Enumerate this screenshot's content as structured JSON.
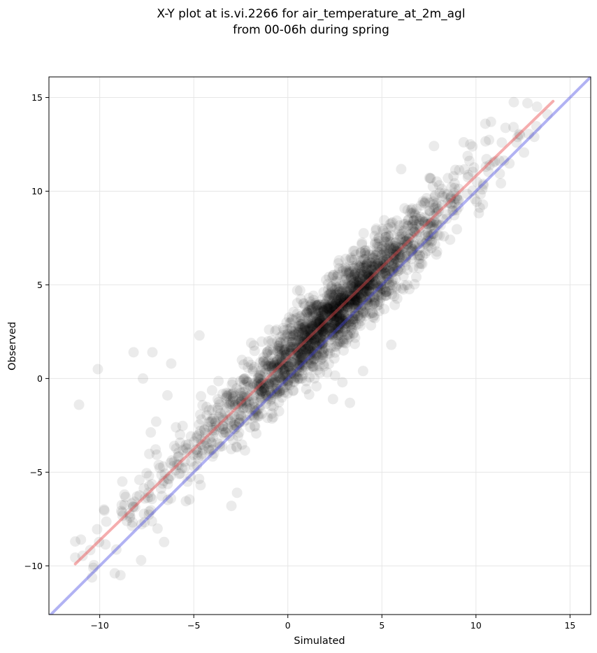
{
  "chart_data": {
    "type": "scatter",
    "title": "X-Y plot at is.vi.2266 for air_temperature_at_2m_agl",
    "subtitle": "from 00-06h during spring",
    "xlabel": "Simulated",
    "ylabel": "Observed",
    "xlim": [
      -12.7,
      16.1
    ],
    "ylim": [
      -12.6,
      16.1
    ],
    "xticks": [
      -10,
      -5,
      0,
      5,
      10,
      15
    ],
    "yticks": [
      -10,
      -5,
      0,
      5,
      10,
      15
    ],
    "xtick_labels": [
      "−10",
      "−5",
      "0",
      "5",
      "10",
      "15"
    ],
    "ytick_labels": [
      "−10",
      "−5",
      "0",
      "5",
      "10",
      "15"
    ],
    "grid": true,
    "point_color": "#000000",
    "point_opacity": 0.08,
    "points_outliers": [
      [
        -11.1,
        -1.4
      ],
      [
        -10.1,
        0.5
      ],
      [
        -8.2,
        1.4
      ],
      [
        -7.2,
        1.4
      ],
      [
        -6.2,
        0.8
      ],
      [
        -7.0,
        -2.3
      ],
      [
        -7.7,
        0.0
      ],
      [
        -4.7,
        2.3
      ],
      [
        -2.7,
        -6.1
      ],
      [
        -3.0,
        -6.8
      ],
      [
        -9.2,
        -10.4
      ],
      [
        -8.9,
        -10.5
      ],
      [
        5.5,
        1.8
      ],
      [
        3.3,
        -1.3
      ],
      [
        2.9,
        -0.2
      ],
      [
        -7.8,
        -9.7
      ],
      [
        -11.3,
        -8.7
      ],
      [
        -11.0,
        -8.6
      ],
      [
        4.0,
        0.4
      ],
      [
        2.4,
        -1.1
      ],
      [
        -6.4,
        -0.9
      ],
      [
        -8.8,
        -5.5
      ],
      [
        1.2,
        4.1
      ],
      [
        0.5,
        4.7
      ],
      [
        13.8,
        14.1
      ],
      [
        13.1,
        12.9
      ],
      [
        10.5,
        13.6
      ],
      [
        9.7,
        12.5
      ]
    ],
    "series": [
      {
        "type": "fit-line",
        "color": "#e8494b",
        "opacity": 0.45,
        "points": [
          [
            -11.3,
            -9.9
          ],
          [
            14.1,
            14.8
          ]
        ]
      },
      {
        "type": "identity-line",
        "color": "#3c3fe0",
        "opacity": 0.4,
        "points": [
          [
            -12.7,
            -12.7
          ],
          [
            16.1,
            16.1
          ]
        ]
      }
    ]
  }
}
